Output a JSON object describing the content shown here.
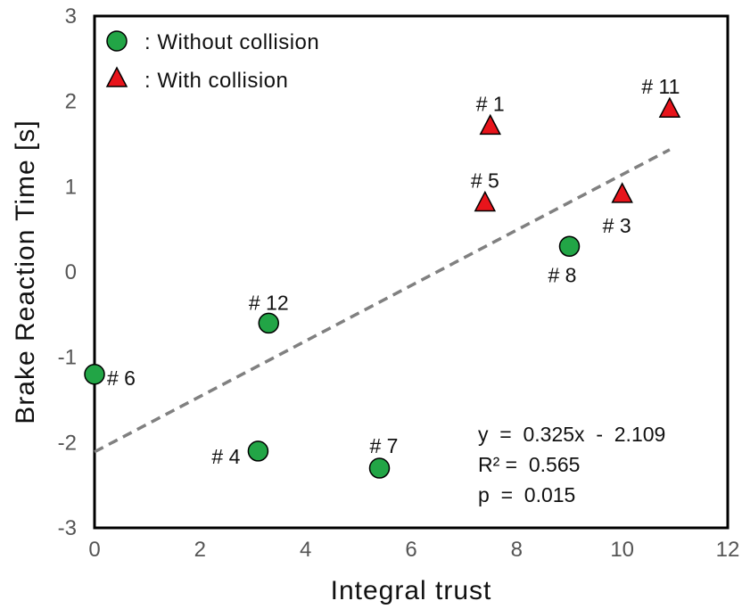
{
  "chart_data": {
    "type": "scatter",
    "xlabel": "Integral trust",
    "ylabel": "Brake Reaction Time [s]",
    "xlim": [
      0,
      12
    ],
    "ylim": [
      -3,
      3
    ],
    "x_ticks": [
      "0",
      "2",
      "4",
      "6",
      "8",
      "10",
      "12"
    ],
    "y_ticks": [
      "3",
      "2",
      "1",
      "0",
      "-1",
      "-2",
      "-3"
    ],
    "grid": false,
    "legend_position": "top-left",
    "series": [
      {
        "name": ": Without collision",
        "marker": "circle",
        "color": "#22a546",
        "points": [
          {
            "label": "# 6",
            "x": 0.0,
            "y": -1.2
          },
          {
            "label": "# 12",
            "x": 3.3,
            "y": -0.6
          },
          {
            "label": "# 4",
            "x": 3.1,
            "y": -2.1
          },
          {
            "label": "# 7",
            "x": 5.4,
            "y": -2.3
          },
          {
            "label": "# 8",
            "x": 9.0,
            "y": 0.3
          }
        ]
      },
      {
        "name": ": With collision",
        "marker": "triangle",
        "color": "#e8141b",
        "points": [
          {
            "label": "# 1",
            "x": 7.5,
            "y": 1.7
          },
          {
            "label": "# 5",
            "x": 7.4,
            "y": 0.8
          },
          {
            "label": "# 3",
            "x": 10.0,
            "y": 0.9
          },
          {
            "label": "# 11",
            "x": 10.9,
            "y": 1.9
          }
        ]
      }
    ],
    "trendline": {
      "slope": 0.325,
      "intercept": -2.109,
      "x_range": [
        0,
        10.9
      ],
      "style": "dashed",
      "color": "#808080"
    },
    "annotations": {
      "equation": "y  =  0.325x  -  2.109",
      "r2": "R² =  0.565",
      "p": "p  =  0.015"
    }
  }
}
